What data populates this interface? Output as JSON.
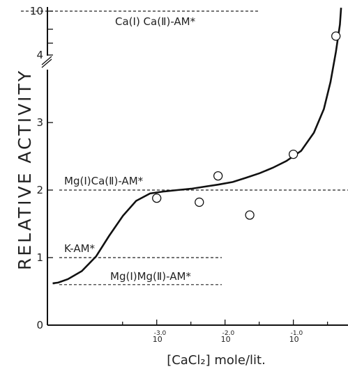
{
  "chart_data": {
    "type": "scatter",
    "ylabel": "RELATIVE ACTIVITY",
    "xlabel": "[CaCl₂] mole/lit.",
    "y_ticks": [
      {
        "value": 0,
        "label": "0"
      },
      {
        "value": 1,
        "label": "1"
      },
      {
        "value": 2,
        "label": "2"
      },
      {
        "value": 3,
        "label": "3"
      },
      {
        "value": 4,
        "label": "4"
      },
      {
        "value": 10,
        "label": "10"
      }
    ],
    "y_axis_break": {
      "between": [
        4,
        10
      ],
      "note": "broken axis"
    },
    "x_ticks": [
      {
        "base": "10",
        "exponent": "-3.0",
        "log_value": -3.0
      },
      {
        "base": "10",
        "exponent": "-2.0",
        "log_value": -2.0
      },
      {
        "base": "10",
        "exponent": "-1.0",
        "log_value": -1.0
      }
    ],
    "xlim_log": [
      -4.6,
      -0.2
    ],
    "ylim": [
      0,
      4.9
    ],
    "points": [
      {
        "x": 0.001,
        "y": 1.88
      },
      {
        "x": 0.0042,
        "y": 1.82
      },
      {
        "x": 0.0079,
        "y": 2.21
      },
      {
        "x": 0.023,
        "y": 1.63
      },
      {
        "x": 0.1,
        "y": 2.53
      },
      {
        "x": 0.42,
        "y": 4.28
      }
    ],
    "fitted_curve_x": [
      3.2e-05,
      3e-05,
      3.62e-05,
      5e-05,
      8e-05,
      0.00013,
      0.0002,
      0.00032,
      0.0005,
      0.0008,
      0.0013,
      0.002,
      0.0032,
      0.005,
      0.0079,
      0.013,
      0.02,
      0.032,
      0.05,
      0.079,
      0.13,
      0.2,
      0.28,
      0.35,
      0.42,
      0.48,
      0.5
    ],
    "fitted_curve_y": [
      0.62,
      0.62,
      0.63,
      0.68,
      0.8,
      1.02,
      1.32,
      1.62,
      1.84,
      1.95,
      1.98,
      2.0,
      2.02,
      2.05,
      2.08,
      2.12,
      2.18,
      2.25,
      2.33,
      2.43,
      2.58,
      2.85,
      3.2,
      3.6,
      4.05,
      4.45,
      4.7
    ],
    "reference_lines": [
      {
        "label": "Ca(Ⅰ) Ca(Ⅱ)-AM*",
        "y": 10
      },
      {
        "label": "Mg(Ⅰ)Ca(Ⅱ)-AM*",
        "y": 2.0
      },
      {
        "label": "K-AM*",
        "y": 1.0
      },
      {
        "label": "Mg(Ⅰ)Mg(Ⅱ)-AM*",
        "y": 0.6
      }
    ],
    "legend": "none",
    "grid": false
  }
}
